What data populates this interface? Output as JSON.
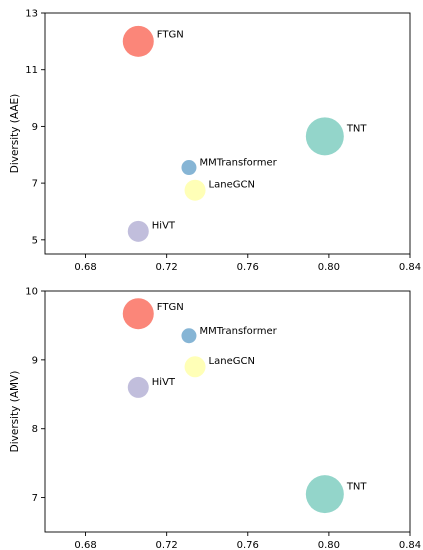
{
  "chart_data": [
    {
      "type": "scatter",
      "title": "",
      "xlabel": "",
      "ylabel": "Diversity (AAE)",
      "xlim": [
        0.66,
        0.84
      ],
      "ylim": [
        4.5,
        13
      ],
      "xticks": [
        0.68,
        0.72,
        0.76,
        0.8,
        0.84
      ],
      "yticks": [
        5,
        7,
        9,
        11,
        13
      ],
      "grid": false,
      "points": [
        {
          "label": "FTGN",
          "x": 0.706,
          "y": 12.0,
          "color": "#fb8072",
          "size": "large"
        },
        {
          "label": "TNT",
          "x": 0.798,
          "y": 8.65,
          "color": "#8dd3c7",
          "size": "x-large"
        },
        {
          "label": "MMTransformer",
          "x": 0.731,
          "y": 7.55,
          "color": "#80b1d3",
          "size": "small"
        },
        {
          "label": "LaneGCN",
          "x": 0.734,
          "y": 6.75,
          "color": "#ffffb3",
          "size": "medium"
        },
        {
          "label": "HiVT",
          "x": 0.706,
          "y": 5.3,
          "color": "#bebada",
          "size": "medium"
        }
      ]
    },
    {
      "type": "scatter",
      "title": "",
      "xlabel": "",
      "ylabel": "Diversity (AMV)",
      "xlim": [
        0.66,
        0.84
      ],
      "ylim": [
        6.5,
        10
      ],
      "xticks": [
        0.68,
        0.72,
        0.76,
        0.8,
        0.84
      ],
      "yticks": [
        7,
        8,
        9,
        10
      ],
      "grid": false,
      "points": [
        {
          "label": "FTGN",
          "x": 0.706,
          "y": 9.67,
          "color": "#fb8072",
          "size": "large"
        },
        {
          "label": "MMTransformer",
          "x": 0.731,
          "y": 9.35,
          "color": "#80b1d3",
          "size": "small"
        },
        {
          "label": "LaneGCN",
          "x": 0.734,
          "y": 8.9,
          "color": "#ffffb3",
          "size": "medium"
        },
        {
          "label": "HiVT",
          "x": 0.706,
          "y": 8.6,
          "color": "#bebada",
          "size": "medium"
        },
        {
          "label": "TNT",
          "x": 0.798,
          "y": 7.05,
          "color": "#8dd3c7",
          "size": "x-large"
        }
      ]
    }
  ]
}
